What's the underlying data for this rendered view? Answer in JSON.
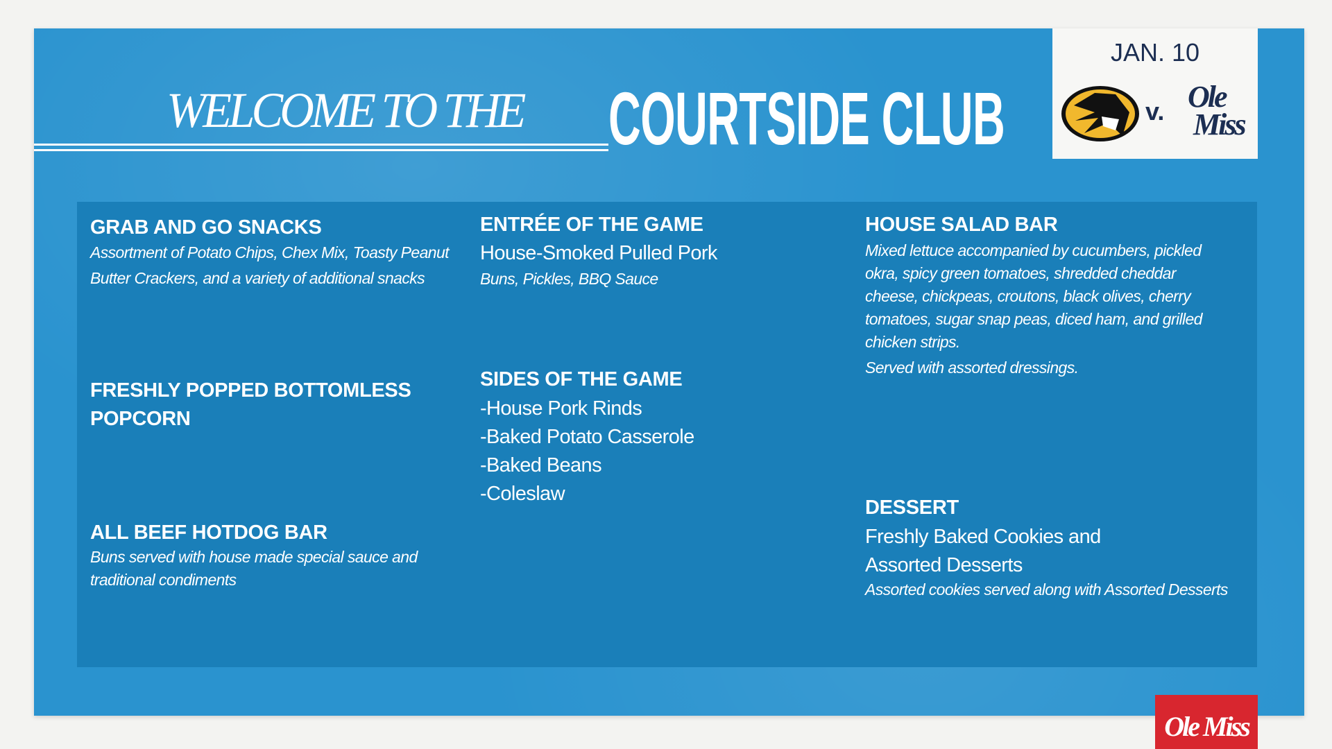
{
  "header": {
    "welcome": "WELCOME TO THE",
    "title": "COURTSIDE CLUB"
  },
  "game": {
    "date": "JAN. 10",
    "home_logo": "missouri-tiger-logo",
    "vs": "v.",
    "away_logo_text": "Ole Miss",
    "away_color": "#1c2e52"
  },
  "footer": {
    "logo_text": "Ole Miss",
    "logo_color": "#d8262f"
  },
  "colors": {
    "panel": "#2a93cf",
    "inner": "#1a7fb9"
  },
  "menu": {
    "grab_and_go": {
      "title": "GRAB AND GO SNACKS",
      "desc": [
        "Assortment of Potato Chips, Chex Mix, Toasty Peanut",
        "Butter Crackers, and a variety of additional snacks"
      ]
    },
    "popcorn": {
      "title": [
        "FRESHLY POPPED BOTTOMLESS",
        "POPCORN"
      ]
    },
    "hotdog": {
      "title": "ALL BEEF HOTDOG BAR",
      "desc": [
        "Buns served with house made special sauce and",
        "traditional condiments"
      ]
    },
    "entree": {
      "title": "ENTRÉE OF THE GAME",
      "item": "House-Smoked Pulled Pork",
      "desc": "Buns, Pickles, BBQ Sauce"
    },
    "sides": {
      "title": "SIDES OF THE GAME",
      "items": [
        "-House Pork Rinds",
        "-Baked Potato Casserole",
        "-Baked Beans",
        "-Coleslaw"
      ]
    },
    "salad": {
      "title": "HOUSE SALAD BAR",
      "desc": [
        "Mixed lettuce accompanied by cucumbers, pickled",
        "okra, spicy green tomatoes, shredded cheddar",
        "cheese, chickpeas, croutons, black olives, cherry",
        "tomatoes, sugar snap peas, diced ham, and grilled",
        "chicken strips.",
        "Served with assorted dressings."
      ]
    },
    "dessert": {
      "title": "DESSERT",
      "items": [
        "Freshly Baked Cookies and",
        "Assorted Desserts"
      ],
      "desc": "Assorted cookies served along with Assorted Desserts"
    }
  }
}
